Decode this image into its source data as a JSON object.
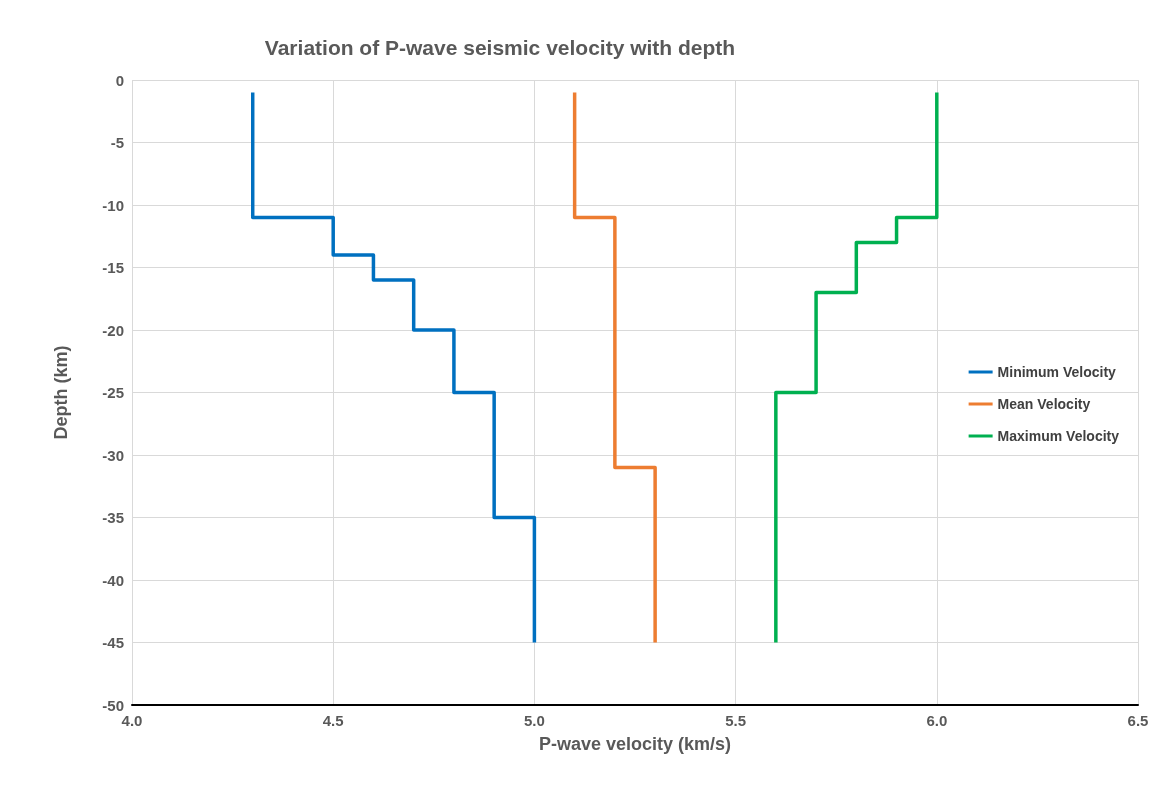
{
  "chart_data": {
    "type": "line",
    "title": "Variation of P-wave seismic velocity with depth",
    "xlabel": "P-wave velocity (km/s)",
    "ylabel": "Depth (km)",
    "series": [
      {
        "name": "Minimum Velocity",
        "color": "#0070c0",
        "x": [
          4.3,
          4.3,
          4.5,
          4.5,
          4.6,
          4.6,
          4.7,
          4.7,
          4.8,
          4.8,
          4.9,
          4.9,
          5.0,
          5.0
        ],
        "values": [
          -1,
          -11,
          -11,
          -14,
          -14,
          -16,
          -16,
          -20,
          -20,
          -25,
          -25,
          -35,
          -35,
          -45
        ]
      },
      {
        "name": "Mean Velocity",
        "color": "#ed7d31",
        "x": [
          5.1,
          5.1,
          5.2,
          5.2,
          5.3,
          5.3
        ],
        "values": [
          -1,
          -11,
          -11,
          -31,
          -31,
          -45
        ]
      },
      {
        "name": "Maximum Velocity",
        "color": "#00b050",
        "x": [
          6.0,
          6.0,
          5.9,
          5.9,
          5.8,
          5.8,
          5.7,
          5.7,
          5.6,
          5.6
        ],
        "values": [
          -1,
          -11,
          -11,
          -13,
          -13,
          -17,
          -17,
          -25,
          -25,
          -45
        ]
      }
    ],
    "xlim": [
      4,
      6.5
    ],
    "xticks": [
      {
        "value": 4,
        "label": "4.0"
      },
      4.5,
      {
        "value": 5,
        "label": "5.0"
      },
      5.5,
      {
        "value": 6,
        "label": "6.0"
      },
      6.5
    ],
    "ylim": [
      -50,
      0
    ],
    "yticks": [
      -50,
      -45,
      -40,
      -35,
      -30,
      -25,
      -20,
      -15,
      -10,
      -5,
      0
    ],
    "grid": true,
    "legend": "right",
    "marker": "none",
    "line_style": "solid"
  }
}
